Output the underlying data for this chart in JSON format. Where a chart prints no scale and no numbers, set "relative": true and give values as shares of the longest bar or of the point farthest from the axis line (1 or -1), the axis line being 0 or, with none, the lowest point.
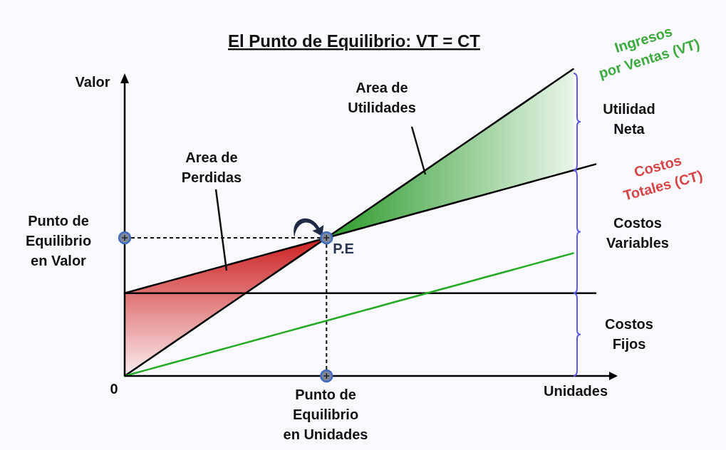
{
  "chart_data": {
    "type": "line",
    "title": "El Punto de Equilibrio: VT = CT",
    "xlabel": "Unidades",
    "ylabel": "Valor",
    "relative": true,
    "grid": false,
    "legend": false,
    "marker": "none",
    "line_style": "solid",
    "categories": [
      null,
      null,
      null,
      null,
      null,
      null,
      null,
      null,
      null,
      null,
      null,
      null,
      null,
      null,
      null,
      null,
      null,
      null,
      null,
      null,
      null,
      null
    ],
    "series": [
      {
        "name": "Ingresos por Ventas (VT)",
        "color": "#000000",
        "values": [
          0,
          0.05,
          0.1,
          0.15,
          0.2,
          0.25,
          0.3,
          0.35,
          0.4,
          0.45,
          0.5,
          0.55,
          0.6,
          0.65,
          0.7,
          0.75,
          0.8,
          0.85,
          0.9,
          0.95,
          1,
          null
        ]
      },
      {
        "name": "Costos Totales (CT)",
        "color": "#000000",
        "values": [
          0.27,
          0.29,
          0.31,
          0.33,
          0.35,
          0.37,
          0.39,
          0.41,
          0.43,
          0.45,
          0.47,
          0.49,
          0.51,
          0.53,
          0.55,
          0.57,
          0.59,
          0.61,
          0.63,
          0.65,
          0.67,
          0.69
        ]
      },
      {
        "color": "#000000",
        "values": [
          0.27,
          0.27,
          0.27,
          0.27,
          0.27,
          0.27,
          0.27,
          0.27,
          0.27,
          0.27,
          0.27,
          0.27,
          0.27,
          0.27,
          0.27,
          0.27,
          0.27,
          0.27,
          0.27,
          0.27,
          0.27,
          0.27
        ]
      },
      {
        "color": "#22aa22",
        "values": [
          0,
          0.02,
          0.04,
          0.06,
          0.08,
          0.1,
          0.12,
          0.14,
          0.16,
          0.18,
          0.2,
          0.22,
          0.24,
          0.26,
          0.28,
          0.3,
          0.32,
          0.34,
          0.36,
          0.38,
          0.4,
          null
        ]
      }
    ],
    "annotations": [
      "0",
      "Area de Perdidas",
      "Area de Utilidades",
      "Punto de Equilibrio en Valor",
      "Punto de Equilibrio en Unidades",
      "P.E",
      "Utilidad Neta",
      "Costos Variables",
      "Costos Fijos"
    ]
  }
}
